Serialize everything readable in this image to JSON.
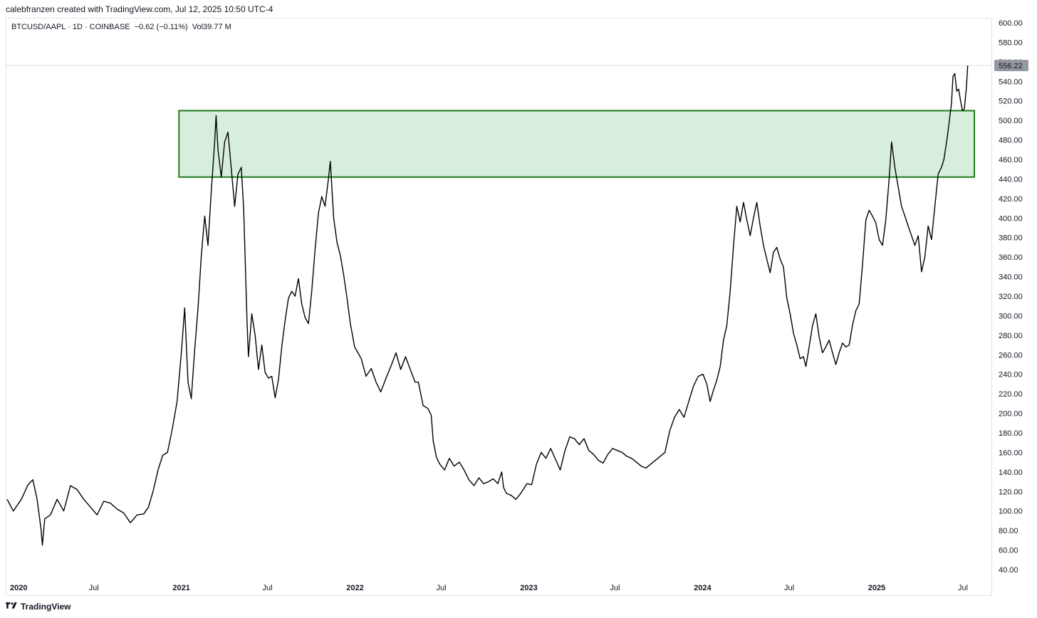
{
  "header": {
    "credit": "calebfranzen created with TradingView.com, Jul 12, 2025 10:50 UTC-4",
    "symbol": "BTCUSD/AAPL",
    "interval": "1D",
    "exchange": "COINBASE",
    "change": "−0.62 (−0.11%)",
    "volume": "Vol39.77 M"
  },
  "footer": {
    "brand": "TradingView",
    "brand_icon": "tradingview-logo-icon"
  },
  "colors": {
    "line": "#000000",
    "zone_fill": "#d8eedc",
    "zone_border": "#1e7a1e",
    "price_tag": "#9598a1",
    "grid": "#e0e3eb"
  },
  "chart_data": {
    "type": "line",
    "title": "BTCUSD/AAPL",
    "ylim": [
      35,
      605
    ],
    "xlim": [
      "2020-01-01",
      "2025-07-31"
    ],
    "y_ticks": [
      "600.00",
      "580.00",
      "560.00",
      "540.00",
      "520.00",
      "500.00",
      "480.00",
      "460.00",
      "440.00",
      "420.00",
      "400.00",
      "380.00",
      "360.00",
      "340.00",
      "320.00",
      "300.00",
      "280.00",
      "260.00",
      "240.00",
      "220.00",
      "200.00",
      "180.00",
      "160.00",
      "140.00",
      "120.00",
      "100.00",
      "80.00",
      "60.00",
      "40.00"
    ],
    "x_ticks": [
      {
        "date": "2020-01-01",
        "label": "2020",
        "bold": true
      },
      {
        "date": "2020-07-01",
        "label": "Jul",
        "bold": false
      },
      {
        "date": "2021-01-01",
        "label": "2021",
        "bold": true
      },
      {
        "date": "2021-07-01",
        "label": "Jul",
        "bold": false
      },
      {
        "date": "2022-01-01",
        "label": "2022",
        "bold": true
      },
      {
        "date": "2022-07-01",
        "label": "Jul",
        "bold": false
      },
      {
        "date": "2023-01-01",
        "label": "2023",
        "bold": true
      },
      {
        "date": "2023-07-01",
        "label": "Jul",
        "bold": false
      },
      {
        "date": "2024-01-01",
        "label": "2024",
        "bold": true
      },
      {
        "date": "2024-07-01",
        "label": "Jul",
        "bold": false
      },
      {
        "date": "2025-01-01",
        "label": "2025",
        "bold": true
      },
      {
        "date": "2025-07-01",
        "label": "Jul",
        "bold": false
      }
    ],
    "last_price": 556.22,
    "last_price_label": "556.22",
    "highlight_zone": {
      "x_start": "2020-12-27",
      "x_end": "2025-07-25",
      "y_low": 442,
      "y_high": 510
    },
    "series": [
      {
        "points": [
          [
            "2020-01-01",
            112
          ],
          [
            "2020-01-14",
            100
          ],
          [
            "2020-01-31",
            112
          ],
          [
            "2020-02-14",
            127
          ],
          [
            "2020-02-24",
            132
          ],
          [
            "2020-03-04",
            112
          ],
          [
            "2020-03-12",
            82
          ],
          [
            "2020-03-15",
            65
          ],
          [
            "2020-03-20",
            92
          ],
          [
            "2020-04-01",
            96
          ],
          [
            "2020-04-15",
            112
          ],
          [
            "2020-04-29",
            100
          ],
          [
            "2020-05-13",
            126
          ],
          [
            "2020-05-27",
            122
          ],
          [
            "2020-06-10",
            112
          ],
          [
            "2020-06-24",
            104
          ],
          [
            "2020-07-08",
            96
          ],
          [
            "2020-07-22",
            110
          ],
          [
            "2020-08-05",
            108
          ],
          [
            "2020-08-19",
            102
          ],
          [
            "2020-09-02",
            98
          ],
          [
            "2020-09-16",
            88
          ],
          [
            "2020-09-30",
            96
          ],
          [
            "2020-10-14",
            97
          ],
          [
            "2020-10-24",
            104
          ],
          [
            "2020-11-03",
            121
          ],
          [
            "2020-11-13",
            142
          ],
          [
            "2020-11-23",
            157
          ],
          [
            "2020-12-03",
            160
          ],
          [
            "2020-12-13",
            184
          ],
          [
            "2020-12-23",
            212
          ],
          [
            "2021-01-01",
            262
          ],
          [
            "2021-01-08",
            308
          ],
          [
            "2021-01-15",
            232
          ],
          [
            "2021-01-22",
            215
          ],
          [
            "2021-01-29",
            265
          ],
          [
            "2021-02-05",
            307
          ],
          [
            "2021-02-12",
            362
          ],
          [
            "2021-02-19",
            402
          ],
          [
            "2021-02-26",
            372
          ],
          [
            "2021-03-05",
            428
          ],
          [
            "2021-03-12",
            478
          ],
          [
            "2021-03-15",
            505
          ],
          [
            "2021-03-19",
            470
          ],
          [
            "2021-03-26",
            442
          ],
          [
            "2021-04-02",
            478
          ],
          [
            "2021-04-09",
            488
          ],
          [
            "2021-04-16",
            450
          ],
          [
            "2021-04-23",
            412
          ],
          [
            "2021-04-30",
            445
          ],
          [
            "2021-05-07",
            452
          ],
          [
            "2021-05-12",
            408
          ],
          [
            "2021-05-19",
            295
          ],
          [
            "2021-05-22",
            258
          ],
          [
            "2021-05-29",
            302
          ],
          [
            "2021-06-05",
            280
          ],
          [
            "2021-06-12",
            245
          ],
          [
            "2021-06-19",
            270
          ],
          [
            "2021-06-26",
            242
          ],
          [
            "2021-07-03",
            236
          ],
          [
            "2021-07-10",
            238
          ],
          [
            "2021-07-17",
            216
          ],
          [
            "2021-07-24",
            234
          ],
          [
            "2021-07-31",
            268
          ],
          [
            "2021-08-07",
            295
          ],
          [
            "2021-08-14",
            318
          ],
          [
            "2021-08-21",
            325
          ],
          [
            "2021-08-28",
            320
          ],
          [
            "2021-09-04",
            338
          ],
          [
            "2021-09-11",
            312
          ],
          [
            "2021-09-18",
            298
          ],
          [
            "2021-09-25",
            292
          ],
          [
            "2021-10-02",
            325
          ],
          [
            "2021-10-09",
            368
          ],
          [
            "2021-10-16",
            405
          ],
          [
            "2021-10-23",
            422
          ],
          [
            "2021-10-30",
            412
          ],
          [
            "2021-11-06",
            440
          ],
          [
            "2021-11-10",
            458
          ],
          [
            "2021-11-17",
            400
          ],
          [
            "2021-11-24",
            375
          ],
          [
            "2021-12-01",
            362
          ],
          [
            "2021-12-08",
            342
          ],
          [
            "2021-12-15",
            318
          ],
          [
            "2021-12-22",
            292
          ],
          [
            "2021-12-31",
            268
          ],
          [
            "2022-01-07",
            262
          ],
          [
            "2022-01-14",
            256
          ],
          [
            "2022-01-24",
            238
          ],
          [
            "2022-02-04",
            246
          ],
          [
            "2022-02-14",
            232
          ],
          [
            "2022-02-24",
            222
          ],
          [
            "2022-03-07",
            236
          ],
          [
            "2022-03-17",
            248
          ],
          [
            "2022-03-28",
            262
          ],
          [
            "2022-04-07",
            245
          ],
          [
            "2022-04-17",
            258
          ],
          [
            "2022-04-27",
            245
          ],
          [
            "2022-05-07",
            232
          ],
          [
            "2022-05-14",
            232
          ],
          [
            "2022-05-24",
            208
          ],
          [
            "2022-06-03",
            205
          ],
          [
            "2022-06-10",
            198
          ],
          [
            "2022-06-14",
            172
          ],
          [
            "2022-06-21",
            155
          ],
          [
            "2022-06-28",
            148
          ],
          [
            "2022-07-08",
            142
          ],
          [
            "2022-07-18",
            154
          ],
          [
            "2022-07-28",
            146
          ],
          [
            "2022-08-08",
            150
          ],
          [
            "2022-08-18",
            142
          ],
          [
            "2022-08-28",
            132
          ],
          [
            "2022-09-08",
            126
          ],
          [
            "2022-09-18",
            134
          ],
          [
            "2022-09-28",
            128
          ],
          [
            "2022-10-08",
            130
          ],
          [
            "2022-10-18",
            133
          ],
          [
            "2022-10-28",
            128
          ],
          [
            "2022-11-05",
            140
          ],
          [
            "2022-11-09",
            124
          ],
          [
            "2022-11-15",
            118
          ],
          [
            "2022-11-25",
            116
          ],
          [
            "2022-12-05",
            112
          ],
          [
            "2022-12-15",
            118
          ],
          [
            "2022-12-28",
            128
          ],
          [
            "2023-01-07",
            127
          ],
          [
            "2023-01-17",
            148
          ],
          [
            "2023-01-27",
            160
          ],
          [
            "2023-02-06",
            154
          ],
          [
            "2023-02-16",
            164
          ],
          [
            "2023-02-26",
            153
          ],
          [
            "2023-03-08",
            142
          ],
          [
            "2023-03-18",
            162
          ],
          [
            "2023-03-28",
            176
          ],
          [
            "2023-04-07",
            174
          ],
          [
            "2023-04-17",
            168
          ],
          [
            "2023-04-27",
            174
          ],
          [
            "2023-05-07",
            162
          ],
          [
            "2023-05-17",
            158
          ],
          [
            "2023-05-27",
            152
          ],
          [
            "2023-06-06",
            149
          ],
          [
            "2023-06-16",
            158
          ],
          [
            "2023-06-26",
            164
          ],
          [
            "2023-07-06",
            162
          ],
          [
            "2023-07-16",
            160
          ],
          [
            "2023-07-26",
            156
          ],
          [
            "2023-08-05",
            154
          ],
          [
            "2023-08-15",
            150
          ],
          [
            "2023-08-25",
            146
          ],
          [
            "2023-09-04",
            144
          ],
          [
            "2023-09-14",
            148
          ],
          [
            "2023-09-24",
            152
          ],
          [
            "2023-10-04",
            156
          ],
          [
            "2023-10-14",
            160
          ],
          [
            "2023-10-24",
            182
          ],
          [
            "2023-11-03",
            196
          ],
          [
            "2023-11-13",
            204
          ],
          [
            "2023-11-23",
            196
          ],
          [
            "2023-12-03",
            212
          ],
          [
            "2023-12-13",
            228
          ],
          [
            "2023-12-23",
            238
          ],
          [
            "2024-01-02",
            240
          ],
          [
            "2024-01-10",
            230
          ],
          [
            "2024-01-17",
            212
          ],
          [
            "2024-01-24",
            224
          ],
          [
            "2024-01-31",
            234
          ],
          [
            "2024-02-07",
            248
          ],
          [
            "2024-02-14",
            275
          ],
          [
            "2024-02-21",
            290
          ],
          [
            "2024-02-28",
            325
          ],
          [
            "2024-03-06",
            372
          ],
          [
            "2024-03-13",
            412
          ],
          [
            "2024-03-20",
            396
          ],
          [
            "2024-03-27",
            416
          ],
          [
            "2024-04-03",
            398
          ],
          [
            "2024-04-10",
            382
          ],
          [
            "2024-04-17",
            400
          ],
          [
            "2024-04-24",
            416
          ],
          [
            "2024-05-01",
            392
          ],
          [
            "2024-05-08",
            372
          ],
          [
            "2024-05-15",
            358
          ],
          [
            "2024-05-22",
            344
          ],
          [
            "2024-05-29",
            365
          ],
          [
            "2024-06-05",
            370
          ],
          [
            "2024-06-12",
            358
          ],
          [
            "2024-06-19",
            350
          ],
          [
            "2024-06-26",
            318
          ],
          [
            "2024-07-03",
            302
          ],
          [
            "2024-07-10",
            282
          ],
          [
            "2024-07-17",
            270
          ],
          [
            "2024-07-24",
            256
          ],
          [
            "2024-07-31",
            258
          ],
          [
            "2024-08-05",
            248
          ],
          [
            "2024-08-12",
            268
          ],
          [
            "2024-08-19",
            290
          ],
          [
            "2024-08-26",
            302
          ],
          [
            "2024-09-02",
            278
          ],
          [
            "2024-09-09",
            262
          ],
          [
            "2024-09-16",
            268
          ],
          [
            "2024-09-23",
            275
          ],
          [
            "2024-09-30",
            262
          ],
          [
            "2024-10-07",
            250
          ],
          [
            "2024-10-14",
            262
          ],
          [
            "2024-10-21",
            272
          ],
          [
            "2024-10-28",
            268
          ],
          [
            "2024-11-04",
            270
          ],
          [
            "2024-11-11",
            290
          ],
          [
            "2024-11-18",
            305
          ],
          [
            "2024-11-25",
            312
          ],
          [
            "2024-12-02",
            352
          ],
          [
            "2024-12-09",
            398
          ],
          [
            "2024-12-16",
            408
          ],
          [
            "2024-12-23",
            402
          ],
          [
            "2024-12-30",
            395
          ],
          [
            "2025-01-06",
            378
          ],
          [
            "2025-01-13",
            372
          ],
          [
            "2025-01-20",
            398
          ],
          [
            "2025-01-27",
            440
          ],
          [
            "2025-02-01",
            478
          ],
          [
            "2025-02-08",
            452
          ],
          [
            "2025-02-15",
            432
          ],
          [
            "2025-02-22",
            412
          ],
          [
            "2025-03-01",
            402
          ],
          [
            "2025-03-08",
            392
          ],
          [
            "2025-03-15",
            382
          ],
          [
            "2025-03-22",
            372
          ],
          [
            "2025-03-29",
            382
          ],
          [
            "2025-04-05",
            345
          ],
          [
            "2025-04-12",
            360
          ],
          [
            "2025-04-19",
            392
          ],
          [
            "2025-04-26",
            378
          ],
          [
            "2025-05-03",
            412
          ],
          [
            "2025-05-10",
            445
          ],
          [
            "2025-05-17",
            452
          ],
          [
            "2025-05-22",
            460
          ],
          [
            "2025-05-29",
            482
          ],
          [
            "2025-06-03",
            502
          ],
          [
            "2025-06-07",
            518
          ],
          [
            "2025-06-10",
            545
          ],
          [
            "2025-06-14",
            548
          ],
          [
            "2025-06-18",
            530
          ],
          [
            "2025-06-22",
            532
          ],
          [
            "2025-06-26",
            520
          ],
          [
            "2025-06-30",
            510
          ],
          [
            "2025-07-04",
            512
          ],
          [
            "2025-07-08",
            532
          ],
          [
            "2025-07-11",
            556.22
          ]
        ]
      }
    ]
  }
}
